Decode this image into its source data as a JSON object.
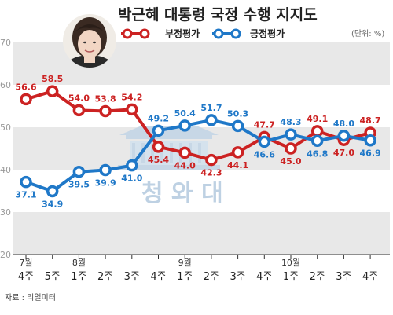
{
  "title": "박근혜 대통령 국정 수행 지지도",
  "unit": "(단위: %)",
  "source": "자료 : 리얼미터",
  "watermark": {
    "text": "청 와 대"
  },
  "colors": {
    "negative": "#cc2222",
    "positive": "#1f78c8",
    "band": "#e8e8e8"
  },
  "chart_data": {
    "type": "line",
    "title": "박근혜 대통령 국정 수행 지지도",
    "unit": "(단위: %)",
    "ylim": [
      20,
      70
    ],
    "yticks": [
      20,
      30,
      40,
      50,
      60,
      70
    ],
    "categories": [
      "4주",
      "5주",
      "1주",
      "2주",
      "3주",
      "4주",
      "1주",
      "2주",
      "3주",
      "4주",
      "1주",
      "2주",
      "3주",
      "4주"
    ],
    "months": [
      {
        "label": "7월",
        "index": 0
      },
      {
        "label": "8월",
        "index": 2
      },
      {
        "label": "9월",
        "index": 6
      },
      {
        "label": "10월",
        "index": 10
      }
    ],
    "series": [
      {
        "name": "부정평가",
        "color": "#cc2222",
        "values": [
          56.6,
          58.5,
          54.0,
          53.8,
          54.2,
          45.4,
          44.0,
          42.3,
          44.1,
          47.7,
          45.0,
          49.1,
          47.0,
          48.7
        ],
        "labels": [
          "56.6",
          "58.5",
          "54.0",
          "53.8",
          "54.2",
          "45.4",
          "44.0",
          "42.3",
          "44.1",
          "47.7",
          "45.0",
          "49.1",
          "47.0",
          "48.7"
        ],
        "label_pos": [
          "above",
          "above",
          "above",
          "above",
          "above",
          "below",
          "below",
          "below",
          "below",
          "above",
          "below",
          "above",
          "below",
          "above"
        ]
      },
      {
        "name": "긍정평가",
        "color": "#1f78c8",
        "values": [
          37.1,
          34.9,
          39.5,
          39.9,
          41.0,
          49.2,
          50.4,
          51.7,
          50.3,
          46.6,
          48.3,
          46.8,
          48.0,
          46.9
        ],
        "labels": [
          "37.1",
          "34.9",
          "39.5",
          "39.9",
          "41.0",
          "49.2",
          "50.4",
          "51.7",
          "50.3",
          "46.6",
          "48.3",
          "46.8",
          "48.0",
          "46.9"
        ],
        "label_pos": [
          "below",
          "below",
          "below",
          "below",
          "below",
          "above",
          "above",
          "above",
          "above",
          "below",
          "above",
          "below",
          "above",
          "below"
        ]
      }
    ],
    "legend": "top"
  }
}
